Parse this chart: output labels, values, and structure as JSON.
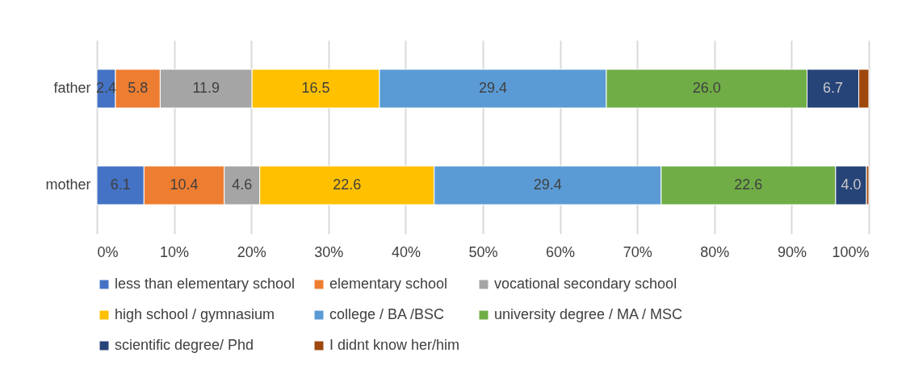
{
  "chart_data": {
    "type": "bar",
    "orientation": "horizontal",
    "stacked": true,
    "categories": [
      "father",
      "mother"
    ],
    "series": [
      {
        "name": "less than elementary school",
        "color": "#4472c4",
        "values": [
          2.4,
          6.1
        ],
        "value_labels": [
          "2.4",
          "6.1"
        ]
      },
      {
        "name": "elementary school",
        "color": "#ed7d31",
        "values": [
          5.8,
          10.4
        ],
        "value_labels": [
          "5.8",
          "10.4"
        ]
      },
      {
        "name": "vocational secondary school",
        "color": "#a5a5a5",
        "values": [
          11.9,
          4.6
        ],
        "value_labels": [
          "11.9",
          "4.6"
        ]
      },
      {
        "name": "high school / gymnasium",
        "color": "#ffc000",
        "values": [
          16.5,
          22.6
        ],
        "value_labels": [
          "16.5",
          "22.6"
        ]
      },
      {
        "name": "college / BA /BSC",
        "color": "#5b9bd5",
        "values": [
          29.4,
          29.4
        ],
        "value_labels": [
          "29.4",
          "29.4"
        ]
      },
      {
        "name": "university degree / MA / MSC",
        "color": "#70ad47",
        "values": [
          26.0,
          22.6
        ],
        "value_labels": [
          "26.0",
          "22.6"
        ]
      },
      {
        "name": "scientific degree/ Phd",
        "color": "#264478",
        "values": [
          6.7,
          4.0
        ],
        "value_labels": [
          "6.7",
          "4.0"
        ]
      },
      {
        "name": "I didnt know her/him",
        "color": "#9e480e",
        "values": [
          1.3,
          0.3
        ],
        "value_labels": [
          null,
          null
        ]
      }
    ],
    "xlim": [
      0,
      100
    ],
    "xticks": [
      {
        "value": 0,
        "label": "0%"
      },
      {
        "value": 10,
        "label": "10%"
      },
      {
        "value": 20,
        "label": "20%"
      },
      {
        "value": 30,
        "label": "30%"
      },
      {
        "value": 40,
        "label": "40%"
      },
      {
        "value": 50,
        "label": "50%"
      },
      {
        "value": 60,
        "label": "60%"
      },
      {
        "value": 70,
        "label": "70%"
      },
      {
        "value": 80,
        "label": "80%"
      },
      {
        "value": 90,
        "label": "90%"
      },
      {
        "value": 100,
        "label": "100%"
      }
    ],
    "grid": "x",
    "legend": "bottom"
  }
}
